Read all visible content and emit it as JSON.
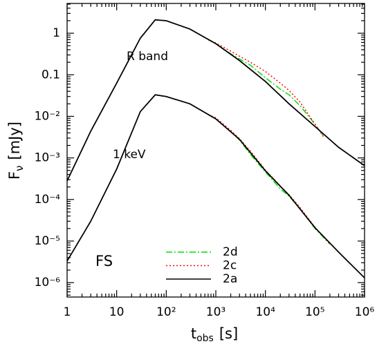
{
  "chart_data": {
    "type": "line",
    "log_x": true,
    "log_y": true,
    "xlim": [
      1,
      1000000
    ],
    "ylim": [
      4.5e-07,
      5.2
    ],
    "xticks": [
      1,
      10,
      {
        "value": 100,
        "label": "10²"
      },
      {
        "value": 1000,
        "label": "10³"
      },
      {
        "value": 10000,
        "label": "10⁴"
      },
      {
        "value": 100000,
        "label": "10⁵"
      },
      {
        "value": 1000000,
        "label": "10⁶"
      }
    ],
    "yticks": [
      {
        "value": 1e-06,
        "label": "10⁻⁶"
      },
      {
        "value": 1e-05,
        "label": "10⁻⁵"
      },
      {
        "value": 0.0001,
        "label": "10⁻⁴"
      },
      {
        "value": 0.001,
        "label": "10⁻³"
      },
      {
        "value": 0.01,
        "label": "10⁻²"
      },
      0.1,
      1
    ],
    "xlabel": {
      "main": "t",
      "sub": "obs",
      "unit": "[s]"
    },
    "ylabel": {
      "main": "F",
      "sub": "ν",
      "unit": "[mJy]"
    },
    "annotations": [
      "R band",
      "1 keV",
      "FS"
    ],
    "series": [
      {
        "name": "2d",
        "color": "#00dd00",
        "dash": "dashdot",
        "curves": [
          {
            "x": [
              700,
              1000,
              2000,
              3000,
              5000,
              10000,
              20000,
              30000,
              50000,
              100000,
              150000
            ],
            "values": [
              0.7,
              0.56,
              0.32,
              0.24,
              0.17,
              0.085,
              0.045,
              0.033,
              0.018,
              0.0065,
              0.0033
            ]
          },
          {
            "x": [
              700,
              1000,
              2000,
              3000,
              5000,
              10000,
              20000,
              30000,
              50000,
              100000,
              200000
            ],
            "values": [
              0.011,
              0.0086,
              0.0043,
              0.0027,
              0.0012,
              0.00046,
              0.00018,
              0.00012,
              6e-05,
              2e-05,
              8.5e-06
            ]
          }
        ]
      },
      {
        "name": "2c",
        "color": "#ff0000",
        "dash": "dotted",
        "curves": [
          {
            "x": [
              700,
              1000,
              2000,
              3000,
              5000,
              10000,
              20000,
              30000,
              50000,
              100000,
              150000
            ],
            "values": [
              0.7,
              0.58,
              0.37,
              0.28,
              0.2,
              0.12,
              0.063,
              0.042,
              0.022,
              0.0065,
              0.0032
            ]
          },
          {
            "x": [
              700,
              1000,
              2000,
              3000,
              5000,
              10000,
              20000,
              30000,
              50000,
              100000,
              200000
            ],
            "values": [
              0.011,
              0.0092,
              0.0046,
              0.0029,
              0.00145,
              0.00051,
              0.00021,
              0.00013,
              6.4e-05,
              2.15e-05,
              8.5e-06
            ]
          }
        ]
      },
      {
        "name": "2a",
        "color": "#000000",
        "dash": "solid",
        "curves": [
          {
            "x": [
              1,
              3,
              10,
              30,
              60,
              100,
              300,
              1000,
              3000,
              10000,
              30000,
              100000,
              300000,
              1000000
            ],
            "values": [
              0.00028,
              0.0044,
              0.063,
              0.76,
              2.1,
              2.0,
              1.26,
              0.56,
              0.22,
              0.069,
              0.02,
              0.0057,
              0.0018,
              0.00065
            ]
          },
          {
            "x": [
              1,
              3,
              10,
              30,
              60,
              100,
              300,
              1000,
              3000,
              10000,
              30000,
              100000,
              300000,
              1000000
            ],
            "values": [
              3.3e-06,
              3e-05,
              0.00054,
              0.013,
              0.033,
              0.03,
              0.02,
              0.0087,
              0.0028,
              0.00049,
              0.000126,
              2.1e-05,
              5.4e-06,
              1.3e-06
            ]
          }
        ]
      }
    ]
  }
}
